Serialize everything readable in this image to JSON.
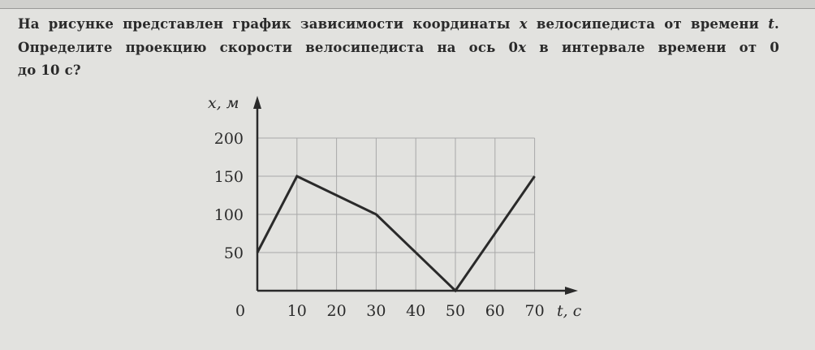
{
  "question": {
    "line1_a": "На рисунке представлен график зависимости координаты ",
    "line1_var": "x",
    "line1_b": " велосипедиста от времени ",
    "line1_var2": "t",
    "line1_c": ".",
    "line2_a": "Определите проекцию скорости велосипедиста на ось 0",
    "line2_var": "x",
    "line2_b": " в интервале времени от 0",
    "line3": "до 10 с?"
  },
  "chart_data": {
    "type": "line",
    "title": "",
    "xlabel": "t, с",
    "ylabel": "x, м",
    "xlim": [
      0,
      70
    ],
    "ylim": [
      0,
      200
    ],
    "grid": true,
    "x_ticks": [
      10,
      20,
      30,
      40,
      50,
      60,
      70
    ],
    "x_tick_labels": [
      "10",
      "20",
      "30",
      "40",
      "50",
      "60",
      "70"
    ],
    "y_ticks": [
      50,
      100,
      150,
      200
    ],
    "y_tick_labels": [
      "50",
      "100",
      "150",
      "200"
    ],
    "origin_label": "0",
    "series": [
      {
        "x": [
          0,
          10,
          30,
          50,
          70
        ],
        "y": [
          50,
          150,
          100,
          0,
          150
        ]
      }
    ],
    "colors": {
      "line": "#2a2a2a",
      "grid": "#a8a8a8"
    }
  }
}
